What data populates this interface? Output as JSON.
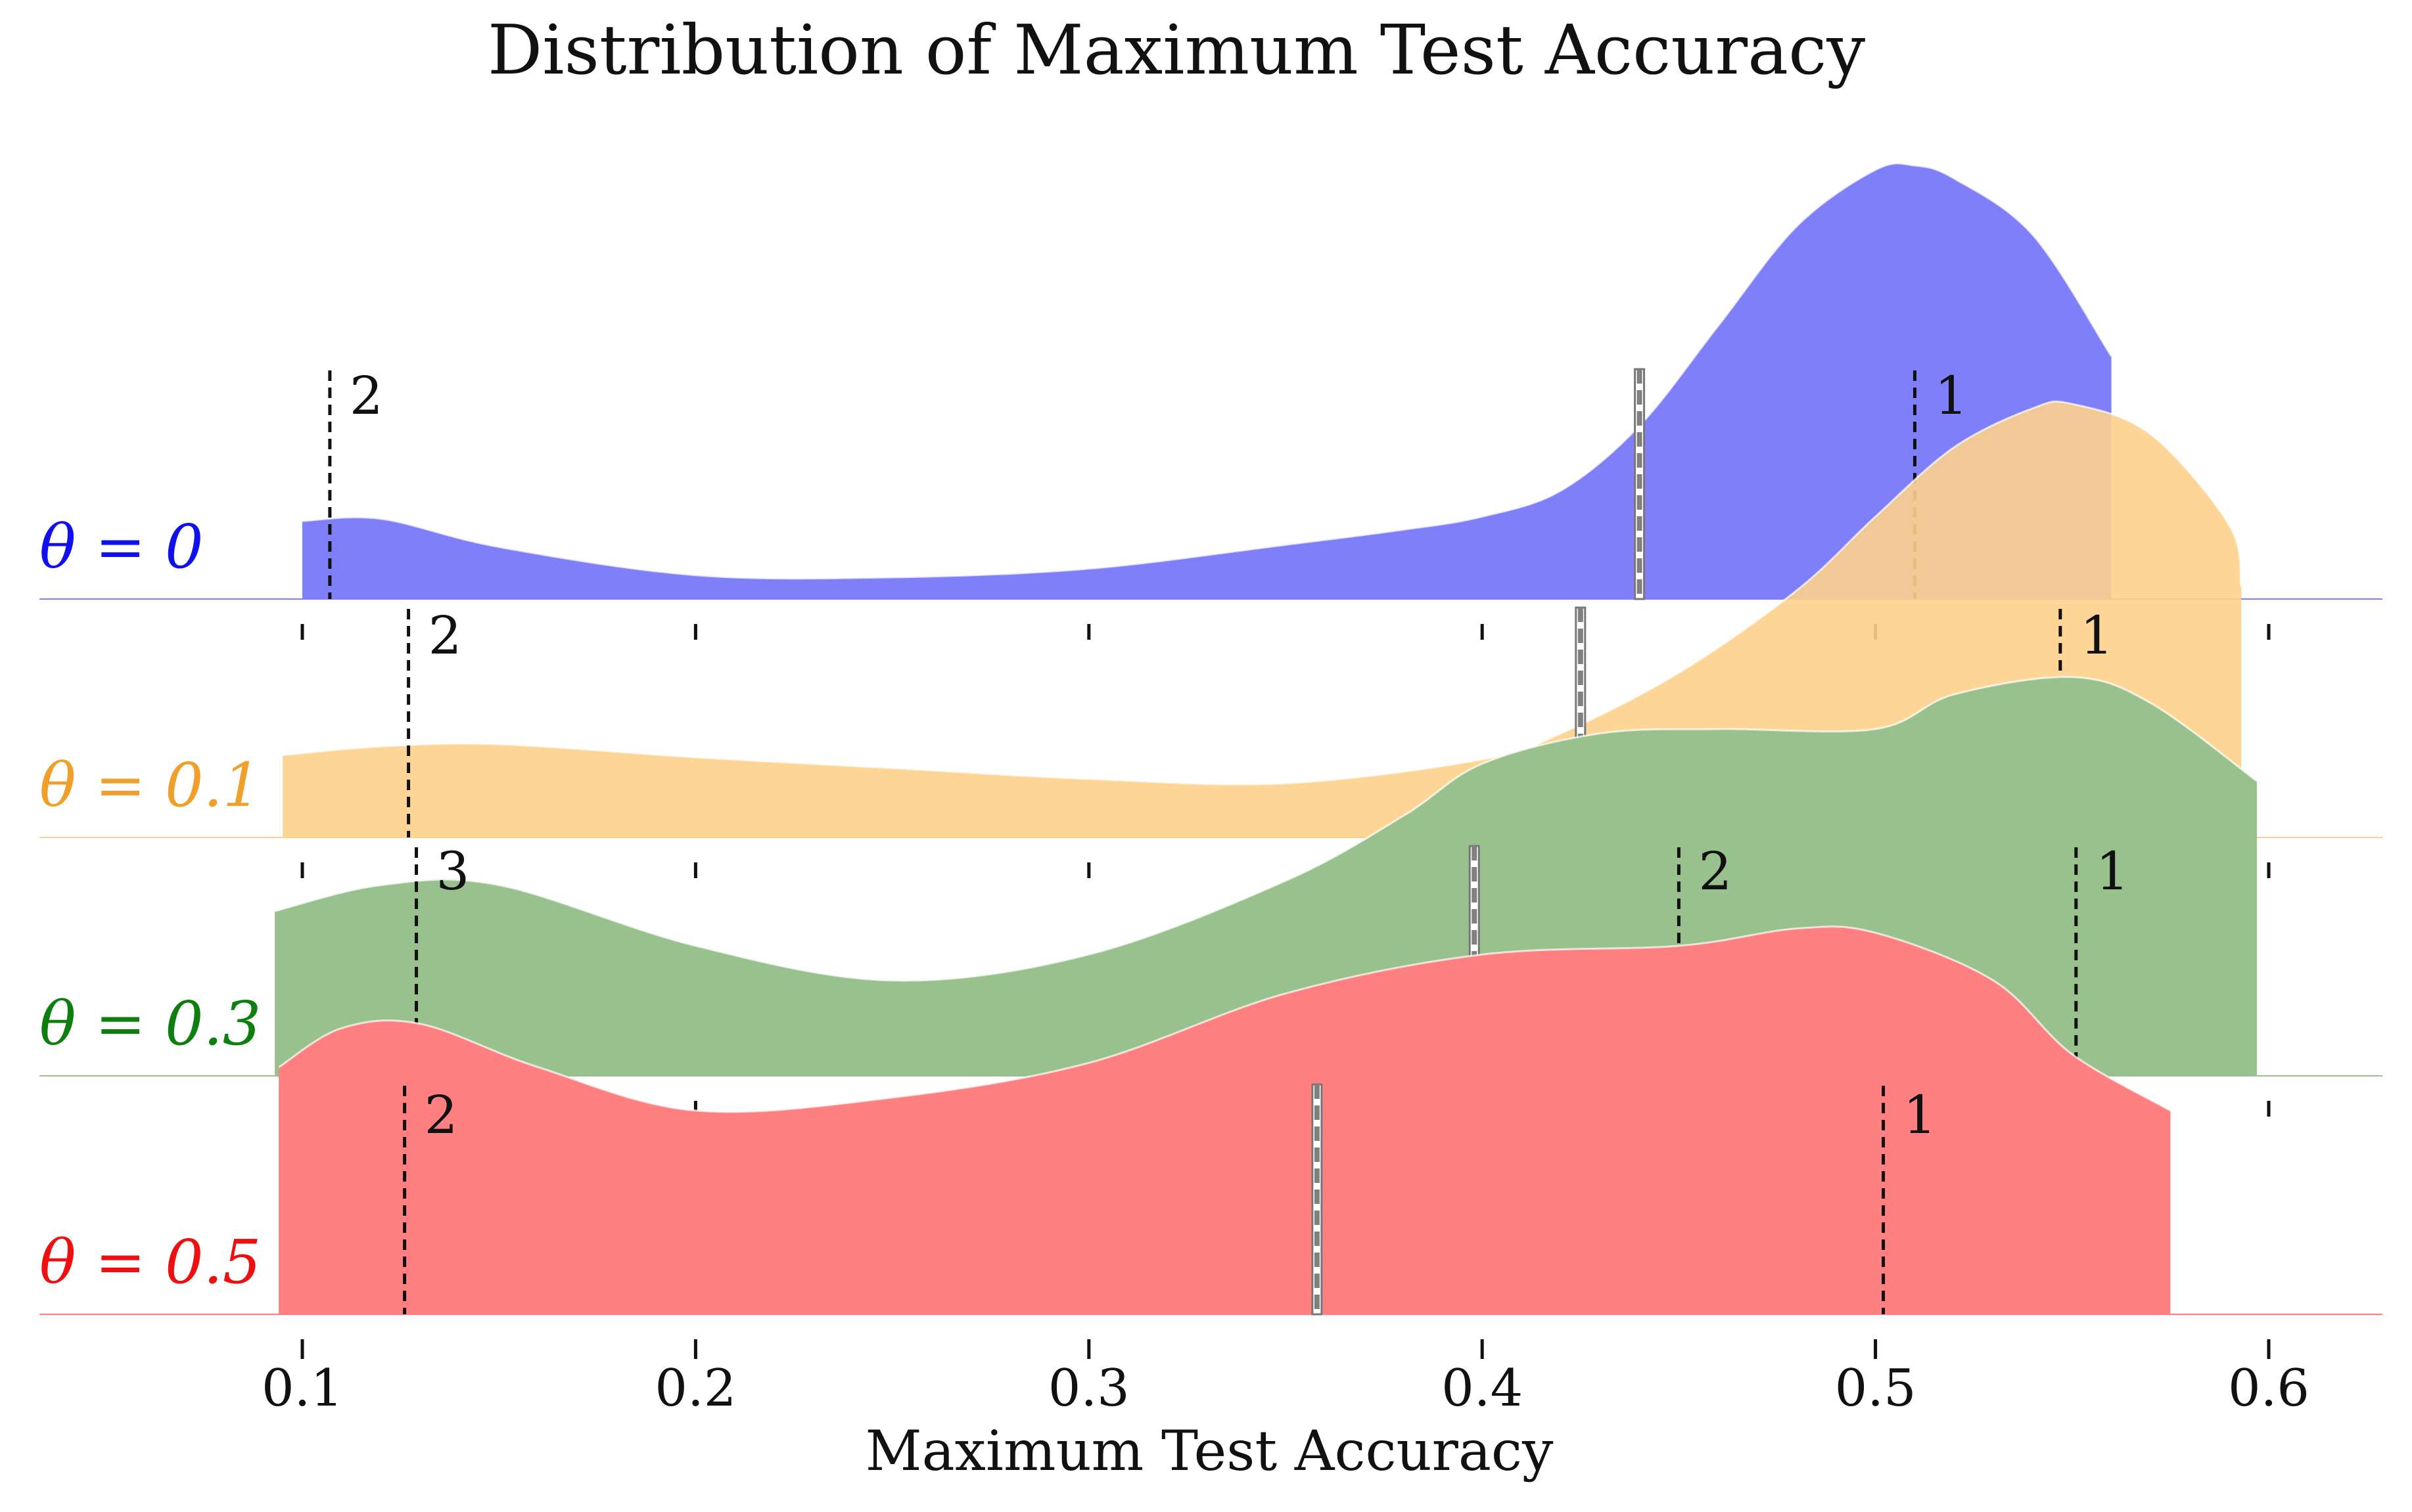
{
  "chart_data": {
    "type": "area",
    "subtype": "ridgeline-kde",
    "title": "Distribution of Maximum Test Accuracy",
    "xlabel": "Maximum Test Accuracy",
    "ylabel": "",
    "xlim": [
      0.04,
      0.63
    ],
    "xticks": [
      0.1,
      0.2,
      0.3,
      0.4,
      0.5,
      0.6
    ],
    "xtick_labels": [
      "0.1",
      "0.2",
      "0.3",
      "0.4",
      "0.5",
      "0.6"
    ],
    "grid": false,
    "legend": "none",
    "series": [
      {
        "name": "θ = 0",
        "color": "#7f7ffa",
        "label_color": "#1010ee",
        "x": [
          0.1,
          0.12,
          0.15,
          0.2,
          0.25,
          0.3,
          0.35,
          0.38,
          0.4,
          0.42,
          0.44,
          0.46,
          0.48,
          0.5,
          0.51,
          0.52,
          0.54,
          0.56
        ],
        "density": [
          0.18,
          0.185,
          0.12,
          0.055,
          0.05,
          0.07,
          0.125,
          0.16,
          0.19,
          0.25,
          0.4,
          0.63,
          0.86,
          0.99,
          1.0,
          0.97,
          0.84,
          0.56
        ],
        "mean": 0.44,
        "modes": [
          {
            "x": 0.107,
            "label": "2"
          },
          {
            "x": 0.51,
            "label": "1"
          }
        ]
      },
      {
        "name": "θ = 0.1",
        "color": "#fdd18c",
        "label_color": "#f0a02a",
        "x": [
          0.095,
          0.12,
          0.15,
          0.2,
          0.25,
          0.3,
          0.35,
          0.4,
          0.42,
          0.45,
          0.48,
          0.5,
          0.52,
          0.54,
          0.55,
          0.57,
          0.59,
          0.593
        ],
        "density": [
          0.19,
          0.21,
          0.215,
          0.185,
          0.16,
          0.135,
          0.125,
          0.18,
          0.24,
          0.38,
          0.57,
          0.74,
          0.9,
          0.99,
          1.0,
          0.93,
          0.72,
          0.58
        ],
        "mean": 0.425,
        "modes": [
          {
            "x": 0.127,
            "label": "2"
          },
          {
            "x": 0.547,
            "label": "1"
          }
        ]
      },
      {
        "name": "θ = 0.3",
        "color": "#99c18d",
        "label_color": "#0e7f0e",
        "x": [
          0.093,
          0.12,
          0.15,
          0.2,
          0.25,
          0.3,
          0.35,
          0.38,
          0.4,
          0.43,
          0.46,
          0.5,
          0.52,
          0.55,
          0.57,
          0.597
        ],
        "density": [
          0.38,
          0.44,
          0.44,
          0.3,
          0.22,
          0.28,
          0.45,
          0.6,
          0.72,
          0.79,
          0.8,
          0.8,
          0.88,
          0.92,
          0.86,
          0.68
        ],
        "mean": 0.398,
        "modes": [
          {
            "x": 0.129,
            "label": "3"
          },
          {
            "x": 0.45,
            "label": "2"
          },
          {
            "x": 0.551,
            "label": "1"
          }
        ]
      },
      {
        "name": "θ = 0.5",
        "color": "#ff8080",
        "label_color": "#ee1010",
        "x": [
          0.094,
          0.11,
          0.13,
          0.16,
          0.2,
          0.25,
          0.3,
          0.35,
          0.4,
          0.45,
          0.48,
          0.5,
          0.53,
          0.55,
          0.575
        ],
        "density": [
          0.57,
          0.66,
          0.67,
          0.57,
          0.47,
          0.5,
          0.58,
          0.74,
          0.83,
          0.85,
          0.89,
          0.88,
          0.77,
          0.6,
          0.47
        ],
        "mean": 0.358,
        "modes": [
          {
            "x": 0.126,
            "label": "2"
          },
          {
            "x": 0.502,
            "label": "1"
          }
        ]
      }
    ]
  }
}
